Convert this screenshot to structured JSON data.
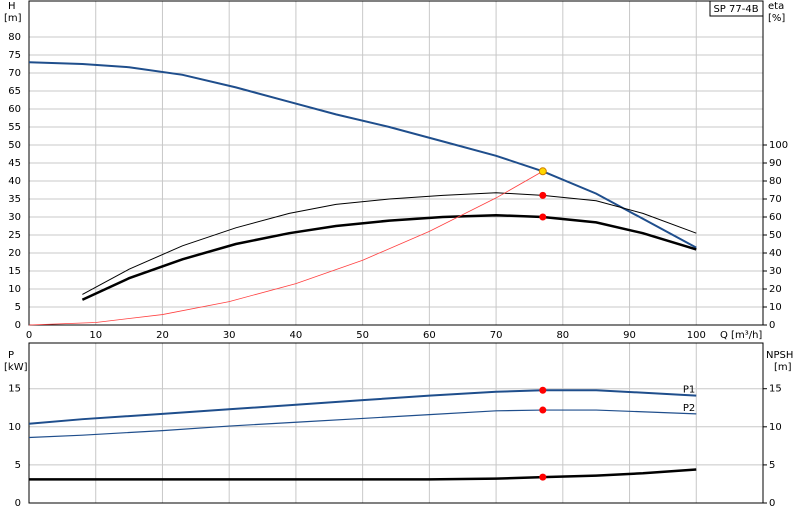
{
  "chart_data": [
    {
      "type": "line",
      "title": "SP 77-4B",
      "x_label": "Q [m³/h]",
      "y_label": "H",
      "y_unit": "[m]",
      "y2_label": "eta",
      "y2_unit": "[%]",
      "xlim": [
        0,
        110
      ],
      "xticks": [
        0,
        10,
        20,
        30,
        40,
        50,
        60,
        70,
        80,
        90,
        100
      ],
      "ylim": [
        0,
        90
      ],
      "yticks": [
        0,
        5,
        10,
        15,
        20,
        25,
        30,
        35,
        40,
        45,
        50,
        55,
        60,
        65,
        70,
        75,
        80
      ],
      "y2lim": [
        0,
        180
      ],
      "y2ticks": [
        0,
        10,
        20,
        30,
        40,
        50,
        60,
        70,
        80,
        90,
        100
      ],
      "grid": true,
      "series": [
        {
          "kind": "line",
          "color": "#1f4e8c",
          "width": 2,
          "x": [
            0,
            8,
            15,
            23,
            31,
            39,
            46,
            54,
            62,
            70,
            77,
            85,
            92,
            100
          ],
          "values": [
            73,
            72.5,
            71.6,
            69.5,
            66,
            62,
            58.5,
            55,
            51,
            47,
            42.7,
            36.5,
            29.5,
            21.5
          ]
        },
        {
          "kind": "line",
          "color": "#000000",
          "width": 1,
          "axis": "y2",
          "x": [
            8,
            15,
            23,
            31,
            39,
            46,
            54,
            62,
            70,
            77,
            85,
            92,
            100
          ],
          "values": [
            17,
            31,
            44,
            54,
            62,
            67,
            70,
            72,
            73.5,
            72,
            69,
            62,
            51
          ]
        },
        {
          "kind": "line",
          "color": "#000000",
          "width": 2.5,
          "axis": "y2",
          "x": [
            8,
            15,
            23,
            31,
            39,
            46,
            54,
            62,
            70,
            77,
            85,
            92,
            100
          ],
          "values": [
            14,
            26,
            36.5,
            45,
            51,
            55,
            58,
            60,
            61,
            60,
            57,
            51,
            42
          ]
        },
        {
          "kind": "line",
          "color": "#ff4040",
          "width": 0.8,
          "x": [
            0,
            10,
            20,
            30,
            40,
            50,
            60,
            70,
            77
          ],
          "values": [
            0,
            0.7,
            2.9,
            6.5,
            11.5,
            18,
            26,
            35.3,
            42.7
          ]
        },
        {
          "kind": "points",
          "color": "#ff0000",
          "axis": "y2",
          "x": [
            77,
            77
          ],
          "values": [
            72,
            60
          ]
        },
        {
          "kind": "points",
          "color": "#ffd700",
          "x": [
            77
          ],
          "values": [
            42.7
          ]
        }
      ]
    },
    {
      "type": "line",
      "y_label": "P",
      "y_unit": "[kW]",
      "y2_label": "NPSH",
      "y2_unit": "[m]",
      "xlim": [
        0,
        110
      ],
      "xticks": [
        0,
        10,
        20,
        30,
        40,
        50,
        60,
        70,
        80,
        90,
        100
      ],
      "ylim": [
        0,
        21
      ],
      "yticks": [
        0,
        5,
        10,
        15
      ],
      "y2lim": [
        0,
        21
      ],
      "y2ticks": [
        0,
        5,
        10,
        15
      ],
      "grid": true,
      "series": [
        {
          "kind": "line",
          "name": "P1",
          "color": "#1f4e8c",
          "width": 2,
          "x": [
            0,
            8,
            20,
            30,
            40,
            50,
            60,
            70,
            77,
            85,
            100
          ],
          "values": [
            10.4,
            11.0,
            11.7,
            12.3,
            12.9,
            13.5,
            14.1,
            14.6,
            14.8,
            14.8,
            14.1
          ]
        },
        {
          "kind": "line",
          "name": "P2",
          "color": "#1f4e8c",
          "width": 1.2,
          "x": [
            0,
            8,
            20,
            30,
            40,
            50,
            60,
            70,
            77,
            85,
            100
          ],
          "values": [
            8.6,
            8.9,
            9.5,
            10.1,
            10.6,
            11.1,
            11.6,
            12.1,
            12.2,
            12.2,
            11.7
          ]
        },
        {
          "kind": "line",
          "color": "#000000",
          "width": 2.5,
          "axis": "y2",
          "x": [
            0,
            8,
            20,
            40,
            60,
            70,
            77,
            85,
            92,
            100
          ],
          "values": [
            3.1,
            3.1,
            3.1,
            3.1,
            3.1,
            3.2,
            3.4,
            3.6,
            3.9,
            4.4
          ]
        },
        {
          "kind": "points",
          "color": "#ff0000",
          "x": [
            77,
            77
          ],
          "values": [
            14.8,
            12.2
          ]
        },
        {
          "kind": "points",
          "color": "#ff0000",
          "axis": "y2",
          "x": [
            77
          ],
          "values": [
            3.4
          ]
        }
      ]
    }
  ]
}
